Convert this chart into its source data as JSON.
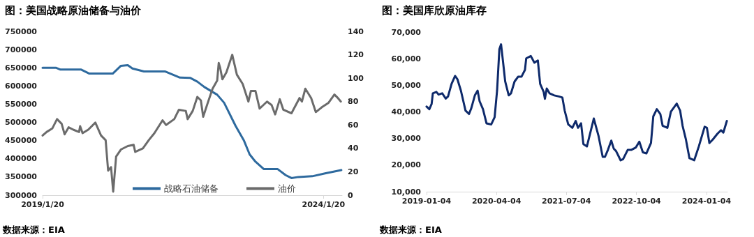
{
  "chart_data": [
    {
      "type": "line",
      "title": "图：美国战略原油储备与油价",
      "annotations": [
        "数据来源：EIA"
      ],
      "xlim": [
        "2019-01-20",
        "2024-05-20"
      ],
      "xticks": [
        {
          "value": "2019-01-20",
          "label": "2019/1/20"
        },
        {
          "value": "2024-01-20",
          "label": "2024/1/20"
        }
      ],
      "ylim": [
        300000,
        750000
      ],
      "yticks": [
        300000,
        350000,
        400000,
        450000,
        500000,
        550000,
        600000,
        650000,
        700000,
        750000
      ],
      "y2lim": [
        0,
        140
      ],
      "y2ticks": [
        0,
        20,
        40,
        60,
        80,
        100,
        120,
        140
      ],
      "grid": false,
      "legend": "bottom",
      "marker": "none",
      "line_style": "solid",
      "series": [
        {
          "name": "战略石油储备",
          "color": "#2e6a9e",
          "x": [
            "2019-01-20",
            "2019-04-16",
            "2019-05-16",
            "2019-09-28",
            "2019-11-20",
            "2020-04-20",
            "2020-06-11",
            "2020-07-27",
            "2020-08-26",
            "2020-11-09",
            "2021-03-25",
            "2021-07-01",
            "2021-09-07",
            "2021-10-22",
            "2021-12-07",
            "2022-02-28",
            "2022-04-14",
            "2022-06-28",
            "2022-08-20",
            "2022-09-27",
            "2022-11-04",
            "2022-12-27",
            "2023-03-27",
            "2023-05-19",
            "2023-06-26",
            "2023-08-10",
            "2023-11-08",
            "2024-01-30",
            "2024-05-15"
          ],
          "values": [
            650000,
            650000,
            645000,
            645000,
            634000,
            634000,
            655000,
            657000,
            648000,
            640000,
            640000,
            623000,
            622000,
            612000,
            597000,
            576000,
            554000,
            490000,
            451000,
            412000,
            392000,
            372000,
            372000,
            355000,
            347000,
            350000,
            352000,
            360000,
            369000
          ]
        },
        {
          "name": "油价",
          "color": "#6b6b6b",
          "axis": "y2",
          "x": [
            "2019-01-20",
            "2019-02-15",
            "2019-03-24",
            "2019-04-24",
            "2019-05-24",
            "2019-06-12",
            "2019-07-08",
            "2019-08-07",
            "2019-09-14",
            "2019-09-21",
            "2019-10-07",
            "2019-11-13",
            "2019-12-29",
            "2020-02-04",
            "2020-03-05",
            "2020-03-21",
            "2020-04-09",
            "2020-04-23",
            "2020-05-12",
            "2020-06-12",
            "2020-07-27",
            "2020-09-03",
            "2020-09-13",
            "2020-11-02",
            "2020-12-10",
            "2021-01-16",
            "2021-03-10",
            "2021-04-02",
            "2021-05-25",
            "2021-06-24",
            "2021-08-08",
            "2021-08-20",
            "2021-09-22",
            "2021-10-22",
            "2021-11-14",
            "2021-11-29",
            "2021-12-29",
            "2022-01-29",
            "2022-02-28",
            "2022-03-10",
            "2022-03-19",
            "2022-04-03",
            "2022-04-29",
            "2022-06-06",
            "2022-07-06",
            "2022-08-13",
            "2022-09-19",
            "2022-10-05",
            "2022-11-04",
            "2022-12-01",
            "2023-01-18",
            "2023-02-17",
            "2023-03-12",
            "2023-04-11",
            "2023-05-04",
            "2023-06-26",
            "2023-08-17",
            "2023-09-02",
            "2023-09-24",
            "2023-11-01",
            "2023-12-01",
            "2024-01-08",
            "2024-02-22",
            "2024-03-31",
            "2024-04-23",
            "2024-05-12"
          ],
          "values": [
            51,
            54,
            57,
            65,
            61,
            52,
            58,
            56,
            54,
            59,
            53,
            56,
            62,
            51,
            47,
            21,
            24,
            3,
            33,
            39,
            42,
            43,
            37,
            40,
            47,
            53,
            64,
            60,
            65,
            73,
            72,
            65,
            72,
            84,
            81,
            67,
            79,
            91,
            98,
            113,
            109,
            99,
            105,
            120,
            103,
            95,
            80,
            89,
            89,
            74,
            80,
            77,
            69,
            82,
            73,
            70,
            83,
            80,
            91,
            83,
            71,
            75,
            79,
            86,
            83,
            80
          ]
        }
      ]
    },
    {
      "type": "line",
      "title": "图：美国库欣原油库存",
      "annotations": [
        "数据来源：EIA"
      ],
      "xlim": [
        "2019-01-04",
        "2024-05-20"
      ],
      "xticks": [
        "2019-01-04",
        "2020-04-04",
        "2021-07-04",
        "2022-10-04",
        "2024-01-04"
      ],
      "ylim": [
        10000,
        70000
      ],
      "yticks": [
        {
          "value": 10000,
          "label": "10,000"
        },
        {
          "value": 20000,
          "label": "20,000"
        },
        {
          "value": 30000,
          "label": "30,000"
        },
        {
          "value": 40000,
          "label": "40,000"
        },
        {
          "value": 50000,
          "label": "50,000"
        },
        {
          "value": 60000,
          "label": "60,000"
        },
        {
          "value": 70000,
          "label": "70,000"
        }
      ],
      "grid": false,
      "legend": false,
      "marker": "none",
      "line_style": "solid",
      "series": [
        {
          "color": "#0e2a6b",
          "x": [
            "2019-01-04",
            "2019-01-22",
            "2019-02-06",
            "2019-02-14",
            "2019-03-09",
            "2019-03-24",
            "2019-04-16",
            "2019-05-09",
            "2019-05-24",
            "2019-06-16",
            "2019-07-09",
            "2019-07-24",
            "2019-08-16",
            "2019-09-15",
            "2019-10-08",
            "2019-10-23",
            "2019-11-15",
            "2019-12-03",
            "2019-12-16",
            "2020-01-07",
            "2020-01-30",
            "2020-03-01",
            "2020-03-23",
            "2020-04-08",
            "2020-04-23",
            "2020-05-04",
            "2020-05-16",
            "2020-05-31",
            "2020-06-23",
            "2020-07-08",
            "2020-07-31",
            "2020-08-23",
            "2020-09-14",
            "2020-10-07",
            "2020-10-15",
            "2020-11-14",
            "2020-12-07",
            "2020-12-30",
            "2021-01-14",
            "2021-02-06",
            "2021-02-14",
            "2021-02-26",
            "2021-03-16",
            "2021-04-16",
            "2021-05-16",
            "2021-06-08",
            "2021-06-23",
            "2021-07-16",
            "2021-08-12",
            "2021-09-03",
            "2021-09-18",
            "2021-10-08",
            "2021-10-23",
            "2021-11-15",
            "2021-12-30",
            "2022-01-30",
            "2022-02-26",
            "2022-03-13",
            "2022-04-01",
            "2022-04-23",
            "2022-05-09",
            "2022-05-24",
            "2022-06-23",
            "2022-07-09",
            "2022-08-08",
            "2022-08-31",
            "2022-09-30",
            "2022-10-23",
            "2022-11-15",
            "2022-12-08",
            "2023-01-07",
            "2023-01-22",
            "2023-02-14",
            "2023-03-09",
            "2023-03-24",
            "2023-04-24",
            "2023-05-17",
            "2023-06-24",
            "2023-07-16",
            "2023-08-01",
            "2023-08-23",
            "2023-09-15",
            "2023-10-16",
            "2023-11-15",
            "2023-12-23",
            "2024-01-07",
            "2024-01-23",
            "2024-02-14",
            "2024-03-16",
            "2024-04-08",
            "2024-04-23",
            "2024-05-16"
          ],
          "values": [
            42000,
            41000,
            43000,
            47000,
            47500,
            46500,
            47000,
            45000,
            45800,
            50500,
            53500,
            52300,
            48000,
            40500,
            39200,
            41400,
            46200,
            48000,
            44000,
            41000,
            35700,
            35300,
            38000,
            48000,
            63600,
            65400,
            59300,
            51400,
            46200,
            47000,
            51400,
            53200,
            53200,
            55800,
            60100,
            61000,
            58500,
            59300,
            50500,
            47500,
            44900,
            48800,
            47000,
            46200,
            45800,
            45400,
            40500,
            35300,
            34000,
            36600,
            34000,
            35700,
            27900,
            27000,
            37500,
            30900,
            23100,
            23100,
            25700,
            29200,
            26200,
            25300,
            21800,
            22200,
            25700,
            25700,
            26600,
            28800,
            24800,
            24400,
            28300,
            38300,
            41000,
            39200,
            34800,
            34000,
            40100,
            43100,
            40500,
            34800,
            29600,
            22600,
            21800,
            27000,
            34400,
            34000,
            28300,
            29600,
            31800,
            33100,
            32200,
            36600
          ]
        }
      ]
    }
  ]
}
